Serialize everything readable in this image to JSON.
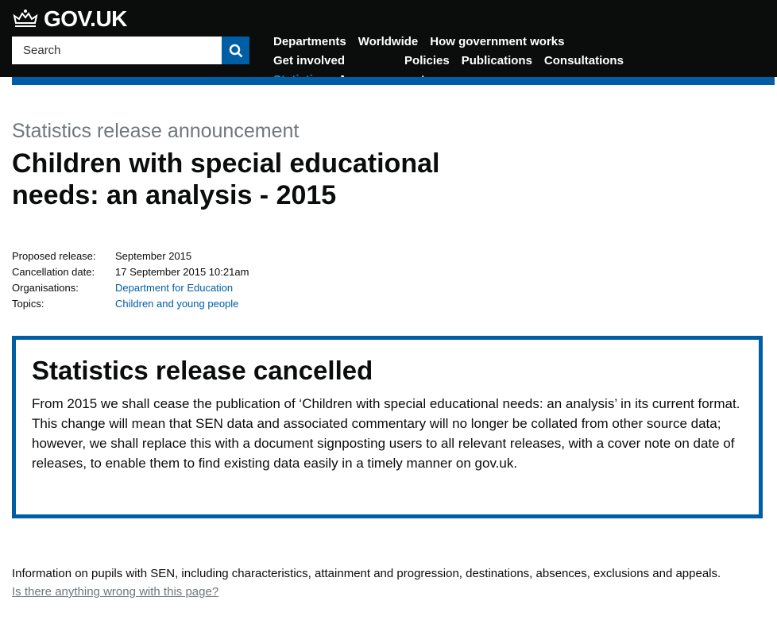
{
  "header": {
    "logo": "GOV.UK",
    "search_placeholder": "Search",
    "nav": [
      "Departments",
      "Worldwide",
      "How government works",
      "Get involved",
      "Policies",
      "Publications",
      "Consultations",
      "Statistics",
      "Announcements"
    ],
    "active_nav": "Statistics",
    "accent": "#005ea5"
  },
  "page": {
    "kicker": "Statistics release announcement",
    "title": "Children with special educational needs: an analysis - 2015",
    "meta": [
      {
        "label": "Proposed release:",
        "value": "September 2015"
      },
      {
        "label": "Cancellation date:",
        "value": "17 September 2015 10:21am"
      },
      {
        "label": "Organisations:",
        "value": "Department for Education"
      },
      {
        "label": "Topics:",
        "value": "Children and young people"
      }
    ],
    "notice": {
      "heading": "Statistics release cancelled",
      "body": "From 2015 we shall cease the publication of ‘Children with special educational needs: an analysis’ in its current format. This change will mean that SEN data and associated commentary will no longer be collated from other source data; however, we shall replace this with a document signposting users to all relevant releases, with a cover note on date of releases, to enable them to find existing data easily in a timely manner on gov.uk."
    },
    "description": "Information on pupils with SEN, including characteristics, attainment and progression, destinations, absences, exclusions and appeals.",
    "report_link": "Is there anything wrong with this page?"
  }
}
